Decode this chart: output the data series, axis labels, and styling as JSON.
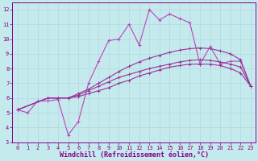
{
  "xlabel": "Windchill (Refroidissement éolien,°C)",
  "xlim": [
    -0.5,
    23.5
  ],
  "ylim": [
    3,
    12.5
  ],
  "xticks": [
    0,
    1,
    2,
    3,
    4,
    5,
    6,
    7,
    8,
    9,
    10,
    11,
    12,
    13,
    14,
    15,
    16,
    17,
    18,
    19,
    20,
    21,
    22,
    23
  ],
  "yticks": [
    3,
    4,
    5,
    6,
    7,
    8,
    9,
    10,
    11,
    12
  ],
  "bg_color": "#c5eaed",
  "grid_color": "#b0d8dc",
  "line_colors": [
    "#bb44bb",
    "#993399",
    "#993399",
    "#993399"
  ],
  "lines": [
    {
      "x": [
        0,
        1,
        2,
        3,
        4,
        5,
        6,
        7,
        8,
        9,
        10,
        11,
        12,
        13,
        14,
        15,
        16,
        17,
        18,
        19,
        20,
        21,
        22,
        23
      ],
      "y": [
        5.2,
        5.0,
        5.8,
        5.8,
        5.9,
        3.5,
        4.4,
        7.0,
        8.5,
        9.9,
        10.0,
        11.0,
        9.6,
        12.0,
        11.3,
        11.7,
        11.4,
        11.1,
        8.3,
        9.5,
        8.3,
        8.5,
        8.5,
        6.8
      ]
    },
    {
      "x": [
        0,
        3,
        4,
        5,
        6,
        7,
        8,
        9,
        10,
        11,
        12,
        13,
        14,
        15,
        16,
        17,
        18,
        19,
        20,
        21,
        22,
        23
      ],
      "y": [
        5.2,
        6.0,
        6.0,
        6.0,
        6.1,
        6.3,
        6.5,
        6.7,
        7.0,
        7.2,
        7.5,
        7.7,
        7.9,
        8.1,
        8.2,
        8.3,
        8.3,
        8.3,
        8.2,
        8.0,
        7.7,
        6.8
      ]
    },
    {
      "x": [
        0,
        3,
        4,
        5,
        6,
        7,
        8,
        9,
        10,
        11,
        12,
        13,
        14,
        15,
        16,
        17,
        18,
        19,
        20,
        21,
        22,
        23
      ],
      "y": [
        5.2,
        6.0,
        6.0,
        6.0,
        6.2,
        6.5,
        6.8,
        7.1,
        7.4,
        7.6,
        7.8,
        8.0,
        8.15,
        8.3,
        8.45,
        8.55,
        8.6,
        8.55,
        8.45,
        8.3,
        8.1,
        6.8
      ]
    },
    {
      "x": [
        0,
        3,
        4,
        5,
        6,
        7,
        8,
        9,
        10,
        11,
        12,
        13,
        14,
        15,
        16,
        17,
        18,
        19,
        20,
        21,
        22,
        23
      ],
      "y": [
        5.2,
        6.0,
        6.0,
        6.0,
        6.3,
        6.6,
        7.0,
        7.4,
        7.8,
        8.15,
        8.45,
        8.7,
        8.9,
        9.1,
        9.25,
        9.35,
        9.4,
        9.35,
        9.2,
        9.0,
        8.6,
        6.8
      ]
    }
  ],
  "marker": "+",
  "markersize": 3.5,
  "linewidth": 0.8,
  "tick_fontsize": 5.0,
  "label_fontsize": 6.0,
  "text_color": "#880088"
}
